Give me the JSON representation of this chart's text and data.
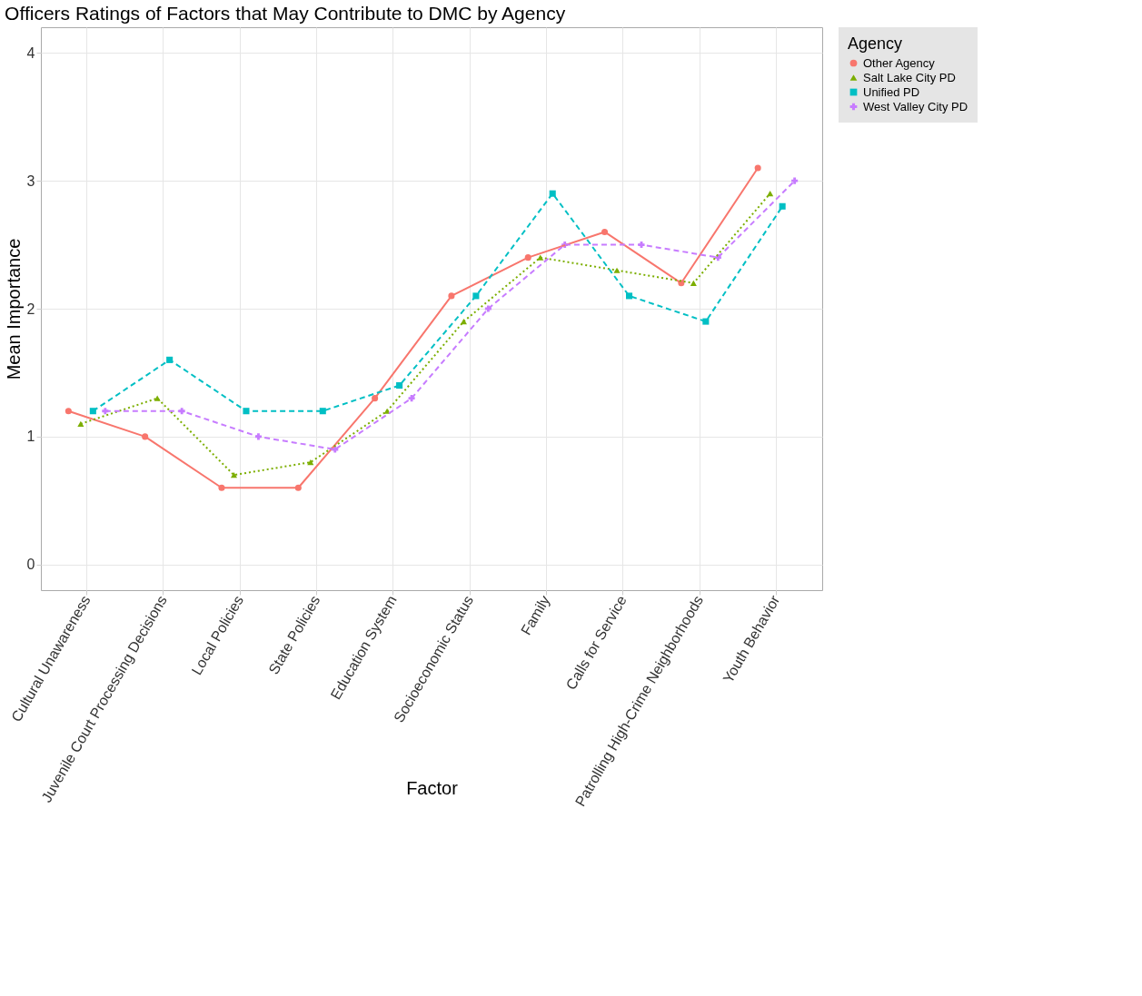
{
  "chart_data": {
    "type": "line",
    "title": "Officers Ratings of Factors that May Contribute to DMC by Agency",
    "xlabel": "Factor",
    "ylabel": "Mean Importance",
    "legend_title": "Agency",
    "categories": [
      "Cultural Unawareness",
      "Juvenile Court Processing Decisions",
      "Local Policies",
      "State Policies",
      "Education System",
      "Socioeconomic Status",
      "Family",
      "Calls for Service",
      "Patrolling High-Crime Neighborhoods",
      "Youth Behavior"
    ],
    "series": [
      {
        "name": "Other Agency",
        "color": "#f8766d",
        "marker": "circle",
        "line_style": "solid",
        "values": [
          1.2,
          1.0,
          0.6,
          0.6,
          1.3,
          2.1,
          2.4,
          2.6,
          2.2,
          3.1
        ]
      },
      {
        "name": "Salt Lake City PD",
        "color": "#7cae00",
        "marker": "triangle",
        "line_style": "dotted",
        "values": [
          1.1,
          1.3,
          0.7,
          0.8,
          1.2,
          1.9,
          2.4,
          2.3,
          2.2,
          2.9
        ]
      },
      {
        "name": "Unified PD",
        "color": "#00bfc4",
        "marker": "square",
        "line_style": "dashed",
        "values": [
          1.2,
          1.6,
          1.2,
          1.2,
          1.4,
          2.1,
          2.9,
          2.1,
          1.9,
          2.8
        ]
      },
      {
        "name": "West Valley City PD",
        "color": "#c77cff",
        "marker": "cross",
        "line_style": "dashed",
        "values": [
          1.2,
          1.2,
          1.0,
          0.9,
          1.3,
          2.0,
          2.5,
          2.5,
          2.4,
          3.0
        ]
      }
    ],
    "ylim": [
      -0.2,
      4.2
    ],
    "yticks": [
      0,
      1,
      2,
      3,
      4
    ],
    "grid": true,
    "legend": "right"
  }
}
